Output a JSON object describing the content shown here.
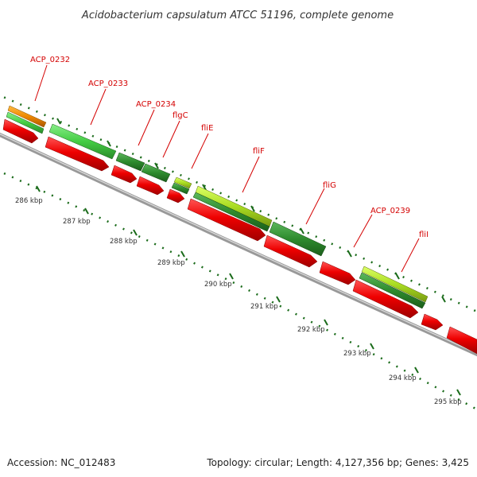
{
  "title": "Acidobacterium capsulatum ATCC 51196, complete genome",
  "footer": {
    "accession": "Accession: NC_012483",
    "topology": "Topology: circular; Length: 4,127,356 bp; Genes: 3,425"
  },
  "colors": {
    "cds": "#ee0000",
    "gene": "#2e8b2e",
    "gene_light": "#44cc44",
    "gene_lime": "#aadd22",
    "gene_orange": "#ee8800",
    "label": "#d40000",
    "backbone": "#888888",
    "ticks": "#1a6b1a"
  },
  "gene_labels": [
    {
      "id": "acp0232",
      "text": "ACP_0232"
    },
    {
      "id": "acp0233",
      "text": "ACP_0233"
    },
    {
      "id": "acp0234",
      "text": "ACP_0234"
    },
    {
      "id": "flgc",
      "text": "flgC"
    },
    {
      "id": "flie",
      "text": "fliE"
    },
    {
      "id": "flif",
      "text": "fliF"
    },
    {
      "id": "flig",
      "text": "fliG"
    },
    {
      "id": "acp0239",
      "text": "ACP_0239"
    },
    {
      "id": "flil",
      "text": "fliI"
    }
  ],
  "tick_labels": [
    {
      "id": "t286",
      "text": "286 kbp"
    },
    {
      "id": "t287",
      "text": "287 kbp"
    },
    {
      "id": "t288",
      "text": "288 kbp"
    },
    {
      "id": "t289",
      "text": "289 kbp"
    },
    {
      "id": "t290",
      "text": "290 kbp"
    },
    {
      "id": "t291",
      "text": "291 kbp"
    },
    {
      "id": "t292",
      "text": "292 kbp"
    },
    {
      "id": "t293",
      "text": "293 kbp"
    },
    {
      "id": "t294",
      "text": "294 kbp"
    },
    {
      "id": "t295",
      "text": "295 kbp"
    }
  ]
}
